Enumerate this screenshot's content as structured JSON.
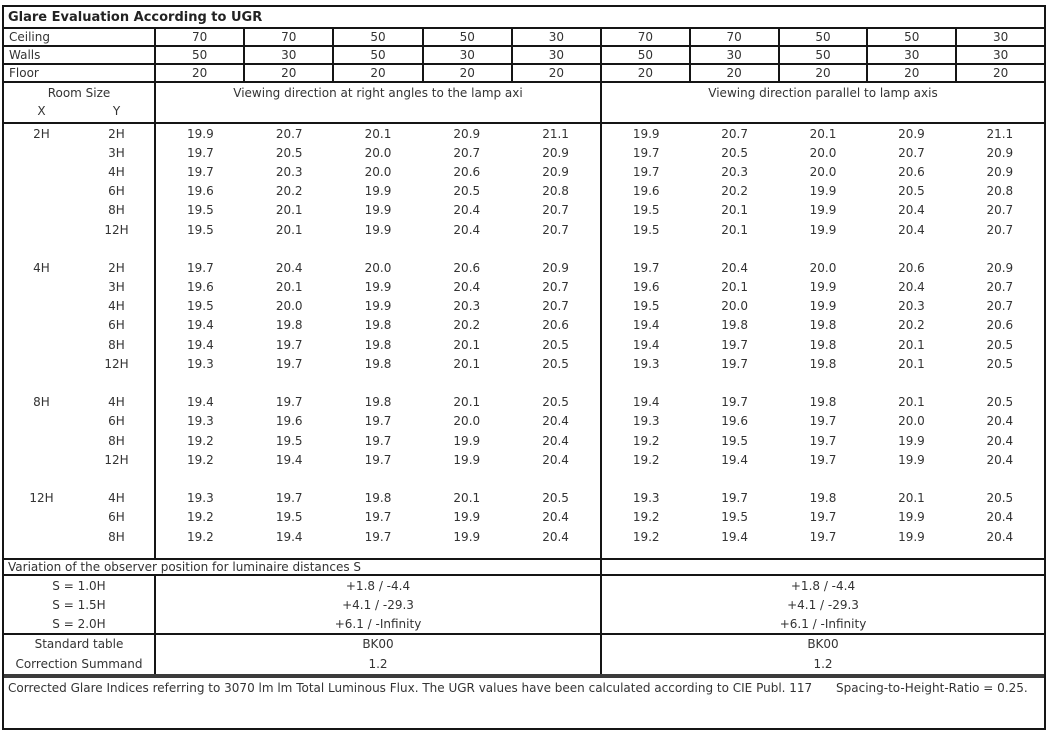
{
  "title": "Glare Evaluation According to UGR",
  "surface_rows": [
    {
      "label": "Ceiling",
      "values": [
        "70",
        "70",
        "50",
        "50",
        "30",
        "70",
        "70",
        "50",
        "50",
        "30"
      ]
    },
    {
      "label": "Walls",
      "values": [
        "50",
        "30",
        "50",
        "30",
        "30",
        "50",
        "30",
        "50",
        "30",
        "30"
      ]
    },
    {
      "label": "Floor",
      "values": [
        "20",
        "20",
        "20",
        "20",
        "20",
        "20",
        "20",
        "20",
        "20",
        "20"
      ]
    }
  ],
  "header": {
    "room_size": "Room Size",
    "x": "X",
    "y": "Y",
    "section_left": "Viewing direction at right angles to the lamp axi",
    "section_right": "Viewing direction parallel to lamp axis"
  },
  "ugr_blocks": [
    {
      "x": "2H",
      "rows": [
        {
          "y": "2H",
          "left": [
            "19.9",
            "20.7",
            "20.1",
            "20.9",
            "21.1"
          ],
          "right": [
            "19.9",
            "20.7",
            "20.1",
            "20.9",
            "21.1"
          ]
        },
        {
          "y": "3H",
          "left": [
            "19.7",
            "20.5",
            "20.0",
            "20.7",
            "20.9"
          ],
          "right": [
            "19.7",
            "20.5",
            "20.0",
            "20.7",
            "20.9"
          ]
        },
        {
          "y": "4H",
          "left": [
            "19.7",
            "20.3",
            "20.0",
            "20.6",
            "20.9"
          ],
          "right": [
            "19.7",
            "20.3",
            "20.0",
            "20.6",
            "20.9"
          ]
        },
        {
          "y": "6H",
          "left": [
            "19.6",
            "20.2",
            "19.9",
            "20.5",
            "20.8"
          ],
          "right": [
            "19.6",
            "20.2",
            "19.9",
            "20.5",
            "20.8"
          ]
        },
        {
          "y": "8H",
          "left": [
            "19.5",
            "20.1",
            "19.9",
            "20.4",
            "20.7"
          ],
          "right": [
            "19.5",
            "20.1",
            "19.9",
            "20.4",
            "20.7"
          ]
        },
        {
          "y": "12H",
          "left": [
            "19.5",
            "20.1",
            "19.9",
            "20.4",
            "20.7"
          ],
          "right": [
            "19.5",
            "20.1",
            "19.9",
            "20.4",
            "20.7"
          ]
        }
      ]
    },
    {
      "x": "4H",
      "rows": [
        {
          "y": "2H",
          "left": [
            "19.7",
            "20.4",
            "20.0",
            "20.6",
            "20.9"
          ],
          "right": [
            "19.7",
            "20.4",
            "20.0",
            "20.6",
            "20.9"
          ]
        },
        {
          "y": "3H",
          "left": [
            "19.6",
            "20.1",
            "19.9",
            "20.4",
            "20.7"
          ],
          "right": [
            "19.6",
            "20.1",
            "19.9",
            "20.4",
            "20.7"
          ]
        },
        {
          "y": "4H",
          "left": [
            "19.5",
            "20.0",
            "19.9",
            "20.3",
            "20.7"
          ],
          "right": [
            "19.5",
            "20.0",
            "19.9",
            "20.3",
            "20.7"
          ]
        },
        {
          "y": "6H",
          "left": [
            "19.4",
            "19.8",
            "19.8",
            "20.2",
            "20.6"
          ],
          "right": [
            "19.4",
            "19.8",
            "19.8",
            "20.2",
            "20.6"
          ]
        },
        {
          "y": "8H",
          "left": [
            "19.4",
            "19.7",
            "19.8",
            "20.1",
            "20.5"
          ],
          "right": [
            "19.4",
            "19.7",
            "19.8",
            "20.1",
            "20.5"
          ]
        },
        {
          "y": "12H",
          "left": [
            "19.3",
            "19.7",
            "19.8",
            "20.1",
            "20.5"
          ],
          "right": [
            "19.3",
            "19.7",
            "19.8",
            "20.1",
            "20.5"
          ]
        }
      ]
    },
    {
      "x": "8H",
      "rows": [
        {
          "y": "4H",
          "left": [
            "19.4",
            "19.7",
            "19.8",
            "20.1",
            "20.5"
          ],
          "right": [
            "19.4",
            "19.7",
            "19.8",
            "20.1",
            "20.5"
          ]
        },
        {
          "y": "6H",
          "left": [
            "19.3",
            "19.6",
            "19.7",
            "20.0",
            "20.4"
          ],
          "right": [
            "19.3",
            "19.6",
            "19.7",
            "20.0",
            "20.4"
          ]
        },
        {
          "y": "8H",
          "left": [
            "19.2",
            "19.5",
            "19.7",
            "19.9",
            "20.4"
          ],
          "right": [
            "19.2",
            "19.5",
            "19.7",
            "19.9",
            "20.4"
          ]
        },
        {
          "y": "12H",
          "left": [
            "19.2",
            "19.4",
            "19.7",
            "19.9",
            "20.4"
          ],
          "right": [
            "19.2",
            "19.4",
            "19.7",
            "19.9",
            "20.4"
          ]
        }
      ]
    },
    {
      "x": "12H",
      "rows": [
        {
          "y": "4H",
          "left": [
            "19.3",
            "19.7",
            "19.8",
            "20.1",
            "20.5"
          ],
          "right": [
            "19.3",
            "19.7",
            "19.8",
            "20.1",
            "20.5"
          ]
        },
        {
          "y": "6H",
          "left": [
            "19.2",
            "19.5",
            "19.7",
            "19.9",
            "20.4"
          ],
          "right": [
            "19.2",
            "19.5",
            "19.7",
            "19.9",
            "20.4"
          ]
        },
        {
          "y": "8H",
          "left": [
            "19.2",
            "19.4",
            "19.7",
            "19.9",
            "20.4"
          ],
          "right": [
            "19.2",
            "19.4",
            "19.7",
            "19.9",
            "20.4"
          ]
        }
      ]
    }
  ],
  "variation": {
    "header": "Variation of the observer position for luminaire distances S",
    "rows": [
      {
        "label": "S = 1.0H",
        "left": "+1.8 / -4.4",
        "right": "+1.8 / -4.4"
      },
      {
        "label": "S = 1.5H",
        "left": "+4.1 / -29.3",
        "right": "+4.1 / -29.3"
      },
      {
        "label": "S = 2.0H",
        "left": "+6.1 / -Infinity",
        "right": "+6.1 / -Infinity"
      }
    ]
  },
  "summary_rows": [
    {
      "label": "Standard table",
      "left": "BK00",
      "right": "BK00"
    },
    {
      "label": "Correction Summand",
      "left": "1.2",
      "right": "1.2"
    }
  ],
  "footer": {
    "part1": "Corrected Glare Indices referring to 3070 lm lm Total Luminous Flux. The UGR values have been calculated according to CIE Publ. 117",
    "part2": "Spacing-to-Height-Ratio = 0.25."
  }
}
